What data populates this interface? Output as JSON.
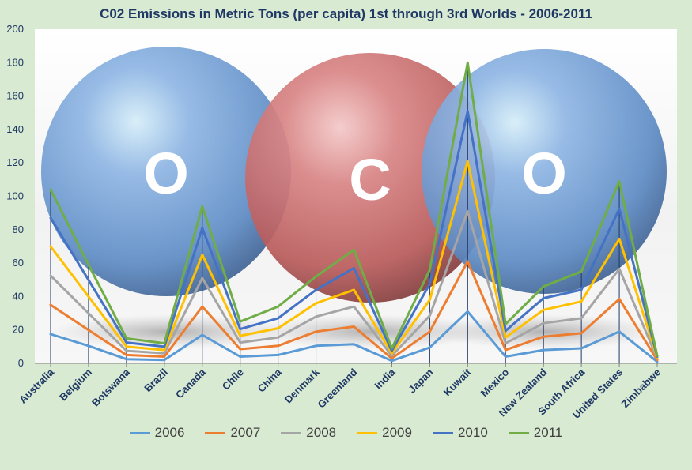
{
  "chart_data": {
    "type": "line",
    "title": "C02 Emissions in Metric Tons (per capita) 1st through 3rd Worlds - 2006-2011",
    "xlabel": "",
    "ylabel": "",
    "ylim": [
      0,
      200
    ],
    "yticks": [
      "0",
      "20",
      "40",
      "60",
      "80",
      "100",
      "120",
      "140",
      "160",
      "180",
      "200"
    ],
    "categories": [
      "Australia",
      "Belgium",
      "Botswana",
      "Brazil",
      "Canada",
      "Chile",
      "China",
      "Denmark",
      "Greenland",
      "India",
      "Japan",
      "Kuwait",
      "Mexico",
      "New Zealand",
      "South Africa",
      "United States",
      "Zimbabwe"
    ],
    "series": [
      {
        "name": "2006",
        "color": "#5b9bd5",
        "values": [
          17.5,
          10.5,
          2.5,
          2.0,
          17.0,
          4.0,
          5.0,
          10.5,
          11.5,
          1.5,
          9.5,
          31.0,
          4.0,
          8.0,
          9.0,
          19.0,
          1.0
        ]
      },
      {
        "name": "2007",
        "color": "#ed7d31",
        "values": [
          35,
          20,
          5,
          4,
          34,
          8.5,
          10.5,
          19,
          22,
          3,
          19,
          61,
          8,
          16,
          18,
          38.5,
          2
        ]
      },
      {
        "name": "2008",
        "color": "#a5a5a5",
        "values": [
          52.5,
          30,
          7.5,
          6,
          51,
          12.5,
          15.5,
          28,
          34,
          4.5,
          28.5,
          91,
          12,
          24,
          27,
          56.5,
          3
        ]
      },
      {
        "name": "2009",
        "color": "#ffc000",
        "values": [
          70,
          40,
          10,
          8,
          65,
          16.5,
          21,
          36,
          44,
          6,
          38,
          121,
          15.5,
          32,
          37,
          74.5,
          3.5
        ]
      },
      {
        "name": "2010",
        "color": "#4472c4",
        "values": [
          87,
          50,
          12.5,
          10,
          81,
          20.5,
          27,
          44,
          57,
          7.5,
          47.5,
          151,
          19.5,
          39,
          44,
          92.5,
          4
        ]
      },
      {
        "name": "2011",
        "color": "#70ad47",
        "values": [
          104,
          59,
          15,
          12,
          94,
          25,
          34,
          52,
          68,
          9,
          56,
          180,
          23.5,
          46,
          55,
          109,
          4.5
        ]
      }
    ],
    "decorations": {
      "spheres": [
        {
          "label": "O",
          "color": "#6f9fd8"
        },
        {
          "label": "C",
          "color": "#d06a6a"
        },
        {
          "label": "O",
          "color": "#6f9fd8"
        }
      ]
    }
  }
}
